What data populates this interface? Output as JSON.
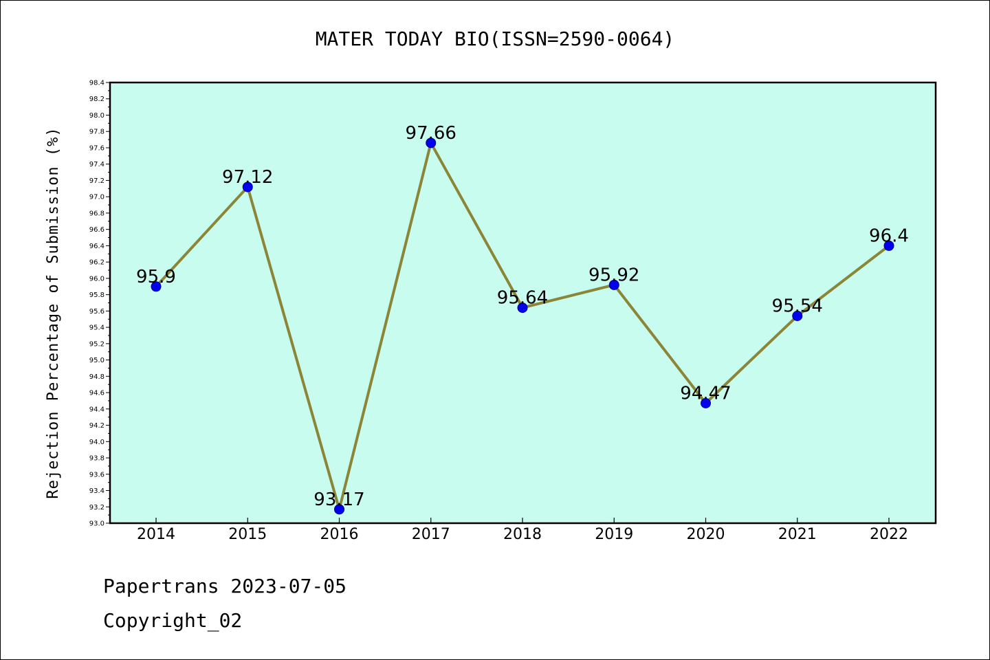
{
  "chart_data": {
    "type": "line",
    "title": "MATER TODAY BIO(ISSN=2590-0064)",
    "xlabel": "",
    "ylabel": "Rejection Percentage of Submission (%)",
    "categories": [
      "2014",
      "2015",
      "2016",
      "2017",
      "2018",
      "2019",
      "2020",
      "2021",
      "2022"
    ],
    "series": [
      {
        "values": [
          95.9,
          97.12,
          93.17,
          97.66,
          95.64,
          95.92,
          94.47,
          95.54,
          96.4
        ],
        "labels": [
          "95.9",
          "97.12",
          "93.17",
          "97.66",
          "95.64",
          "95.92",
          "94.47",
          "95.54",
          "96.4"
        ]
      }
    ],
    "ylim": [
      93.0,
      98.4
    ],
    "ytick_step": 0.2,
    "grid": false,
    "legend": "none",
    "colors": {
      "plot_background": "#c8fcee",
      "line": "#8b8537",
      "marker": "#0000ee",
      "marker_edge": "#00008b"
    }
  },
  "footer": {
    "line1": "Papertrans 2023-07-05",
    "line2": "Copyright_02"
  }
}
